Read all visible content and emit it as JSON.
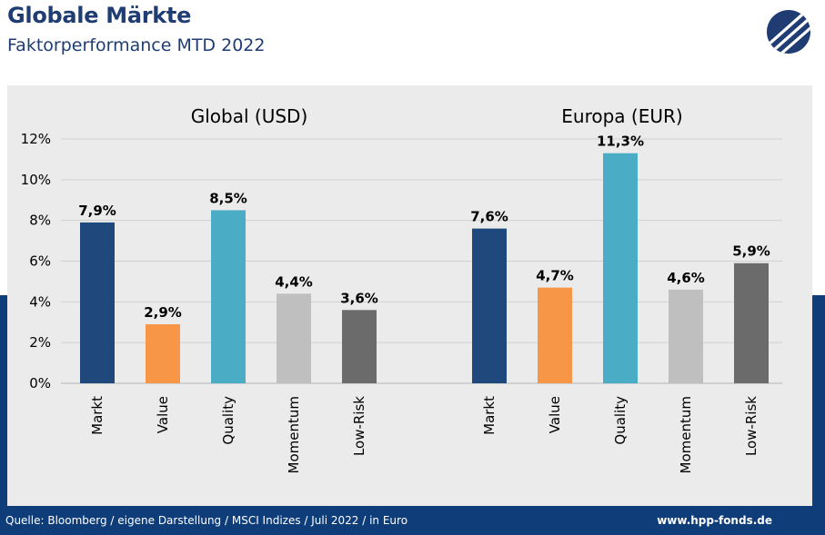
{
  "header": {
    "title": "Globale Märkte",
    "subtitle": "Faktorperformance MTD 2022"
  },
  "logo": {
    "icon": "hpp-logo-icon",
    "color": "#1f3d72"
  },
  "footer": {
    "source": "Quelle: Bloomberg / eigene Darstellung / MSCI Indizes / Juli 2022 / in Euro",
    "website": "www.hpp-fonds.de"
  },
  "colors": {
    "band": "#0e3d7a",
    "panel": "#ebebeb",
    "markt": "#1f497d",
    "value": "#f79646",
    "quality": "#4bacc6",
    "momentum": "#bfbfbf",
    "lowrisk": "#6b6b6b"
  },
  "chart_data": [
    {
      "type": "bar",
      "title": "Global (USD)",
      "categories": [
        "Markt",
        "Value",
        "Quality",
        "Momentum",
        "Low-Risk"
      ],
      "values": [
        7.9,
        2.9,
        8.5,
        4.4,
        3.6
      ],
      "data_labels": [
        "7,9%",
        "2,9%",
        "8,5%",
        "4,4%",
        "3,6%"
      ],
      "colors": [
        "#1f497d",
        "#f79646",
        "#4bacc6",
        "#bfbfbf",
        "#6b6b6b"
      ],
      "ylim": [
        0,
        12
      ],
      "yticks": [
        "0%",
        "2%",
        "4%",
        "6%",
        "8%",
        "10%",
        "12%"
      ],
      "grid": true
    },
    {
      "type": "bar",
      "title": "Europa (EUR)",
      "categories": [
        "Markt",
        "Value",
        "Quality",
        "Momentum",
        "Low-Risk"
      ],
      "values": [
        7.6,
        4.7,
        11.3,
        4.6,
        5.9
      ],
      "data_labels": [
        "7,6%",
        "4,7%",
        "11,3%",
        "4,6%",
        "5,9%"
      ],
      "colors": [
        "#1f497d",
        "#f79646",
        "#4bacc6",
        "#bfbfbf",
        "#6b6b6b"
      ],
      "ylim": [
        0,
        12
      ],
      "grid": true
    }
  ]
}
